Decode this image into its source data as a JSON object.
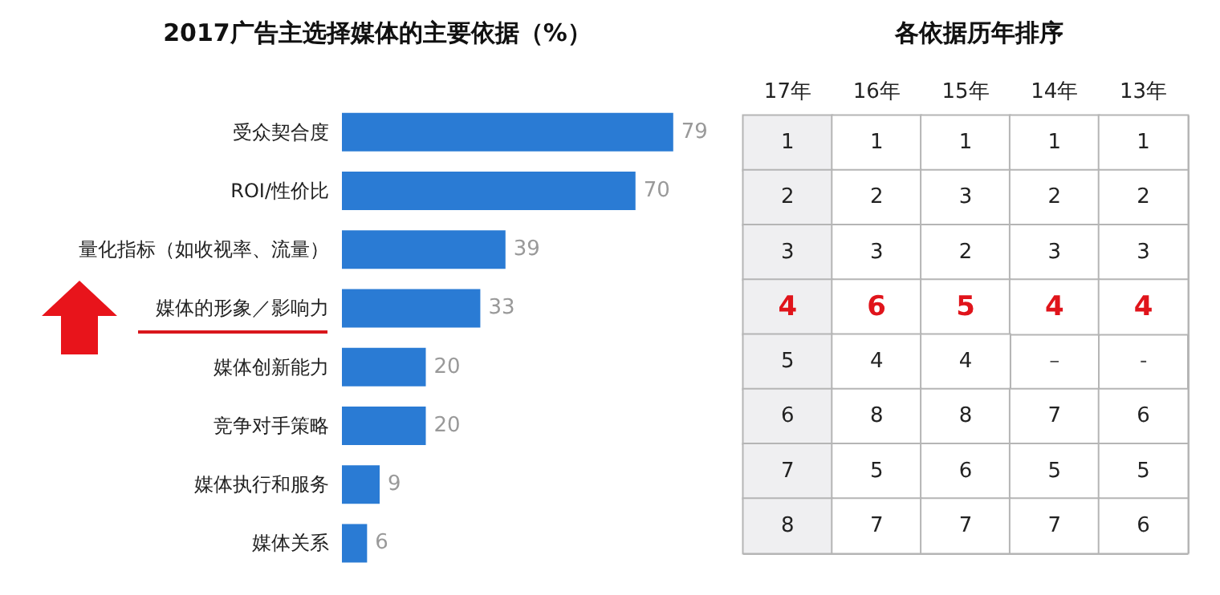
{
  "chart_data": [
    {
      "type": "bar",
      "title": "2017广告主选择媒体的主要依据（%）",
      "orientation": "horizontal",
      "categories": [
        "受众契合度",
        "ROI/性价比",
        "量化指标（如收视率、流量）",
        "媒体的形象／影响力",
        "媒体创新能力",
        "竞争对手策略",
        "媒体执行和服务",
        "媒体关系"
      ],
      "values": [
        79,
        70,
        39,
        33,
        20,
        20,
        9,
        6
      ],
      "color": "#2a7bd4",
      "data_labels": true
    },
    {
      "type": "heatmap",
      "title": "各依据历年排序",
      "categories": [
        "17年",
        "16年",
        "15年",
        "14年",
        "13年"
      ],
      "y_categories": [
        null,
        null,
        null,
        null,
        null,
        null,
        null,
        null
      ],
      "cells": [
        [
          1,
          1,
          1,
          1,
          1
        ],
        [
          2,
          2,
          3,
          2,
          2
        ],
        [
          3,
          3,
          2,
          3,
          3
        ],
        [
          4,
          6,
          5,
          4,
          4
        ],
        [
          5,
          4,
          4,
          null,
          null
        ],
        [
          6,
          8,
          8,
          7,
          6
        ],
        [
          7,
          5,
          6,
          5,
          5
        ],
        [
          8,
          7,
          7,
          7,
          6
        ]
      ],
      "annotations": [
        "–",
        "-"
      ],
      "data_labels": true,
      "tick_labels": "x"
    }
  ]
}
